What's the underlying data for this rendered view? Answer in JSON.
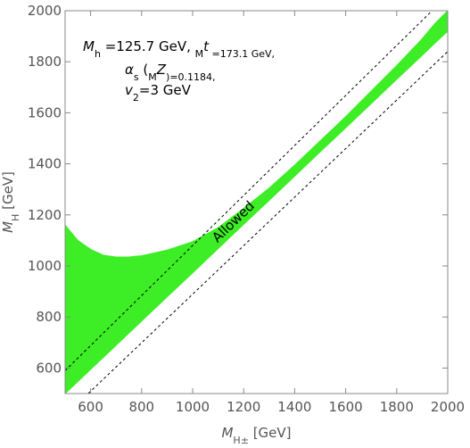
{
  "chart_data": {
    "type": "band",
    "x": [
      500,
      550,
      600,
      650,
      700,
      750,
      800,
      900,
      1000,
      1100,
      1200,
      1300,
      1400,
      1500,
      1600,
      1700,
      1800,
      1900,
      1950,
      2000
    ],
    "series": [
      {
        "color": "#3ded25",
        "values": [
          1160,
          1100,
          1065,
          1042,
          1035,
          1035,
          1040,
          1062,
          1095,
          1150,
          1225,
          1305,
          1395,
          1490,
          1585,
          1685,
          1785,
          1890,
          1950,
          2000
        ]
      },
      {
        "color": "#3ded25",
        "values": [
          500,
          547,
          595,
          642,
          689,
          737,
          784,
          879,
          973,
          1068,
          1163,
          1257,
          1352,
          1447,
          1541,
          1636,
          1731,
          1825,
          1873,
          1920
        ]
      }
    ],
    "dashed": {
      "color": "#000000",
      "x": [
        500,
        2000
      ],
      "series": [
        {
          "values": [
            590,
            2060
          ]
        },
        {
          "values": [
            414,
            1840
          ]
        }
      ]
    },
    "xlim": [
      500,
      2000
    ],
    "ylim": [
      500,
      2000
    ],
    "xticks": [
      600,
      800,
      1000,
      1200,
      1400,
      1600,
      1800,
      2000
    ],
    "yticks": [
      600,
      800,
      1000,
      1200,
      1400,
      1600,
      1800,
      2000
    ],
    "xlabel": [
      "M",
      "H±",
      " [GeV]"
    ],
    "ylabel": [
      "M",
      "H",
      " [GeV]"
    ],
    "annotations": [
      [
        "M",
        "h",
        " =125.7 GeV, ",
        "M",
        "t",
        " =173.1 GeV,"
      ],
      [
        "α",
        "s",
        " (",
        "M",
        "Z",
        ")=0.1184,"
      ],
      [
        "v",
        "2",
        "=3 GeV"
      ]
    ],
    "band_label": "Allowed"
  }
}
